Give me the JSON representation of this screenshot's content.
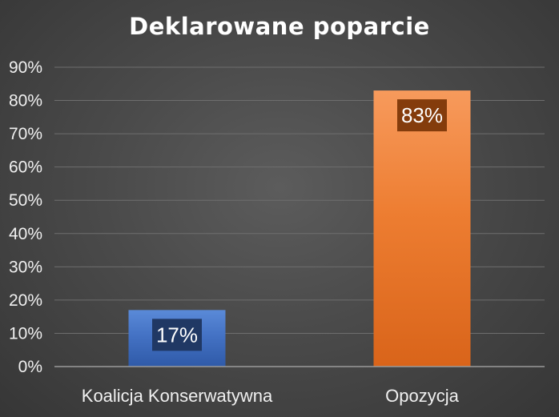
{
  "chart_data": {
    "type": "bar",
    "title": "Deklarowane poparcie",
    "categories": [
      "Koalicja Konserwatywna",
      "Opozycja"
    ],
    "values": [
      17,
      83
    ],
    "data_labels": [
      "17%",
      "83%"
    ],
    "ylim": [
      0,
      90
    ],
    "yticks": [
      0,
      10,
      20,
      30,
      40,
      50,
      60,
      70,
      80,
      90
    ],
    "ytick_labels": [
      "0%",
      "10%",
      "20%",
      "30%",
      "40%",
      "50%",
      "60%",
      "70%",
      "80%",
      "90%"
    ],
    "grid": true,
    "legend": "none",
    "colors": {
      "bars": [
        "#4472c4",
        "#ed7d31"
      ],
      "bars_light": [
        "#5a8ad8",
        "#f79a5c"
      ],
      "bars_dark": [
        "#2f5aa8",
        "#d9641a"
      ],
      "label_boxes": [
        "#203864",
        "#843c0c"
      ],
      "gridline": "#6e6e6e",
      "axis": "#9a9a9a"
    }
  }
}
